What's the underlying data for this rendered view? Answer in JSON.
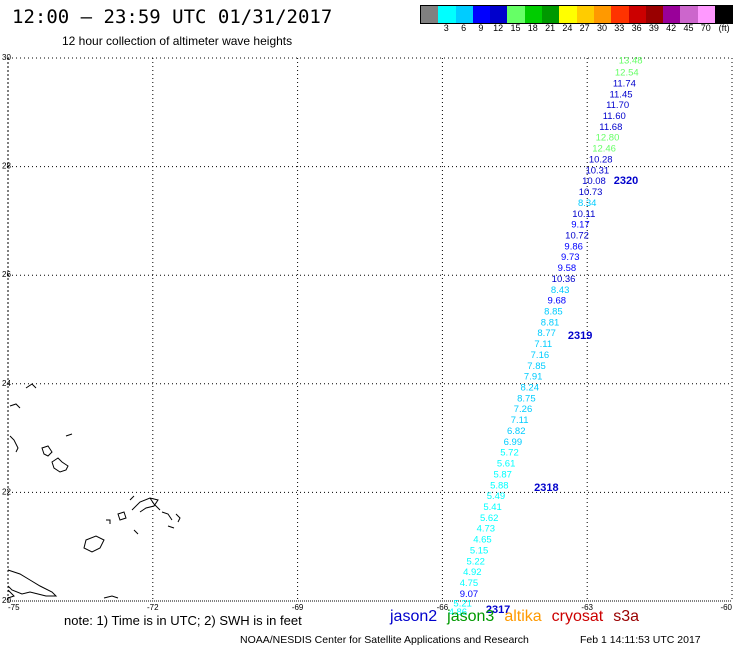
{
  "header": {
    "title": "12:00 – 23:59 UTC 01/31/2017",
    "subtitle": "12 hour collection of altimeter wave heights"
  },
  "colorbar": {
    "unit": "(ft)",
    "colors": [
      "#808080",
      "#00ffff",
      "#00ccff",
      "#0000ff",
      "#0000cc",
      "#66ff66",
      "#00cc00",
      "#009900",
      "#ffff00",
      "#ffcc00",
      "#ff9900",
      "#ff3300",
      "#cc0000",
      "#990000",
      "#990099",
      "#cc66cc",
      "#ff99ff",
      "#000000"
    ],
    "ticks": [
      "3",
      "6",
      "9",
      "12",
      "15",
      "18",
      "21",
      "24",
      "27",
      "30",
      "33",
      "36",
      "39",
      "42",
      "45",
      "70"
    ]
  },
  "axes": {
    "lon_ticks": [
      "-75",
      "-72",
      "-69",
      "-66",
      "-63",
      "-60"
    ],
    "lat_ticks": [
      "30",
      "28",
      "26",
      "24",
      "22",
      "20"
    ],
    "lon_range": [
      -75,
      -60
    ],
    "lat_range": [
      20,
      30
    ]
  },
  "observations": [
    {
      "value": "13.48",
      "lon": -62.1,
      "lat": 29.97,
      "color": "#66ff66"
    },
    {
      "value": "12.54",
      "lon": -62.18,
      "lat": 29.75,
      "color": "#66ff66"
    },
    {
      "value": "11.74",
      "lon": -62.23,
      "lat": 29.55,
      "color": "#0000cc"
    },
    {
      "value": "11.45",
      "lon": -62.3,
      "lat": 29.35,
      "color": "#0000cc"
    },
    {
      "value": "11.70",
      "lon": -62.37,
      "lat": 29.15,
      "color": "#0000cc"
    },
    {
      "value": "11.60",
      "lon": -62.44,
      "lat": 28.95,
      "color": "#0000cc"
    },
    {
      "value": "11.68",
      "lon": -62.51,
      "lat": 28.75,
      "color": "#0000cc"
    },
    {
      "value": "12.80",
      "lon": -62.58,
      "lat": 28.55,
      "color": "#66ff66"
    },
    {
      "value": "12.46",
      "lon": -62.65,
      "lat": 28.35,
      "color": "#66ff66"
    },
    {
      "value": "10.28",
      "lon": -62.72,
      "lat": 28.15,
      "color": "#0000cc"
    },
    {
      "value": "10.31",
      "lon": -62.79,
      "lat": 27.95,
      "color": "#0000cc"
    },
    {
      "value": "10.08",
      "lon": -62.86,
      "lat": 27.75,
      "color": "#0000cc"
    },
    {
      "value": "10.73",
      "lon": -62.93,
      "lat": 27.55,
      "color": "#0000cc"
    },
    {
      "value": "8.34",
      "lon": -63.0,
      "lat": 27.35,
      "color": "#00ccff"
    },
    {
      "value": "10.11",
      "lon": -63.07,
      "lat": 27.15,
      "color": "#0000cc"
    },
    {
      "value": "9.17",
      "lon": -63.14,
      "lat": 26.95,
      "color": "#0000ff"
    },
    {
      "value": "10.72",
      "lon": -63.21,
      "lat": 26.75,
      "color": "#0000cc"
    },
    {
      "value": "9.86",
      "lon": -63.28,
      "lat": 26.55,
      "color": "#0000ff"
    },
    {
      "value": "9.73",
      "lon": -63.35,
      "lat": 26.35,
      "color": "#0000ff"
    },
    {
      "value": "9.58",
      "lon": -63.42,
      "lat": 26.15,
      "color": "#0000ff"
    },
    {
      "value": "10.36",
      "lon": -63.49,
      "lat": 25.95,
      "color": "#0000cc"
    },
    {
      "value": "8.43",
      "lon": -63.56,
      "lat": 25.75,
      "color": "#00ccff"
    },
    {
      "value": "9.68",
      "lon": -63.63,
      "lat": 25.55,
      "color": "#0000ff"
    },
    {
      "value": "8.85",
      "lon": -63.7,
      "lat": 25.35,
      "color": "#00ccff"
    },
    {
      "value": "8.81",
      "lon": -63.77,
      "lat": 25.15,
      "color": "#00ccff"
    },
    {
      "value": "8.77",
      "lon": -63.84,
      "lat": 24.95,
      "color": "#00ccff"
    },
    {
      "value": "7.11",
      "lon": -63.91,
      "lat": 24.75,
      "color": "#00ccff"
    },
    {
      "value": "7.16",
      "lon": -63.98,
      "lat": 24.55,
      "color": "#00ccff"
    },
    {
      "value": "7.85",
      "lon": -64.05,
      "lat": 24.35,
      "color": "#00ccff"
    },
    {
      "value": "7.91",
      "lon": -64.12,
      "lat": 24.15,
      "color": "#00ccff"
    },
    {
      "value": "8.24",
      "lon": -64.19,
      "lat": 23.95,
      "color": "#00ccff"
    },
    {
      "value": "8.75",
      "lon": -64.26,
      "lat": 23.75,
      "color": "#00ccff"
    },
    {
      "value": "7.26",
      "lon": -64.33,
      "lat": 23.55,
      "color": "#00ccff"
    },
    {
      "value": "7.11",
      "lon": -64.4,
      "lat": 23.35,
      "color": "#00ccff"
    },
    {
      "value": "6.82",
      "lon": -64.47,
      "lat": 23.15,
      "color": "#00ccff"
    },
    {
      "value": "6.99",
      "lon": -64.54,
      "lat": 22.95,
      "color": "#00ccff"
    },
    {
      "value": "5.72",
      "lon": -64.61,
      "lat": 22.75,
      "color": "#00ffff"
    },
    {
      "value": "5.61",
      "lon": -64.68,
      "lat": 22.55,
      "color": "#00ffff"
    },
    {
      "value": "5.87",
      "lon": -64.75,
      "lat": 22.35,
      "color": "#00ffff"
    },
    {
      "value": "5.88",
      "lon": -64.82,
      "lat": 22.15,
      "color": "#00ffff"
    },
    {
      "value": "5.49",
      "lon": -64.89,
      "lat": 21.95,
      "color": "#00ffff"
    },
    {
      "value": "5.41",
      "lon": -64.96,
      "lat": 21.75,
      "color": "#00ffff"
    },
    {
      "value": "5.62",
      "lon": -65.03,
      "lat": 21.55,
      "color": "#00ffff"
    },
    {
      "value": "4.73",
      "lon": -65.1,
      "lat": 21.35,
      "color": "#00ffff"
    },
    {
      "value": "4.65",
      "lon": -65.17,
      "lat": 21.15,
      "color": "#00ffff"
    },
    {
      "value": "5.15",
      "lon": -65.24,
      "lat": 20.95,
      "color": "#00ffff"
    },
    {
      "value": "5.22",
      "lon": -65.31,
      "lat": 20.75,
      "color": "#00ffff"
    },
    {
      "value": "4.92",
      "lon": -65.38,
      "lat": 20.55,
      "color": "#00ffff"
    },
    {
      "value": "4.75",
      "lon": -65.45,
      "lat": 20.35,
      "color": "#00ffff"
    },
    {
      "value": "9.07",
      "lon": -65.45,
      "lat": 20.15,
      "color": "#0000ff"
    },
    {
      "value": "5.21",
      "lon": -65.58,
      "lat": 19.97,
      "color": "#00ffff"
    },
    {
      "value": "4.86",
      "lon": -65.68,
      "lat": 19.82,
      "color": "#00ffff"
    }
  ],
  "passes": [
    {
      "label": "2320",
      "lon": -62.45,
      "lat": 27.75
    },
    {
      "label": "2319",
      "lon": -63.4,
      "lat": 24.9
    },
    {
      "label": "2318",
      "lon": -64.1,
      "lat": 22.1
    },
    {
      "label": "2317",
      "lon": -65.1,
      "lat": 19.85
    }
  ],
  "note": "note:  1) Time is in UTC;  2) SWH is in feet",
  "legend": [
    {
      "name": "jason2",
      "color": "#0000cc"
    },
    {
      "name": "jason3",
      "color": "#009900"
    },
    {
      "name": "altika",
      "color": "#ff9900"
    },
    {
      "name": "cryosat",
      "color": "#cc0000"
    },
    {
      "name": "s3a",
      "color": "#990000"
    }
  ],
  "credit": "NOAA/NESDIS Center for Satellite Applications and Research",
  "timestamp": "Feb  1 14:11:53 UTC 2017"
}
